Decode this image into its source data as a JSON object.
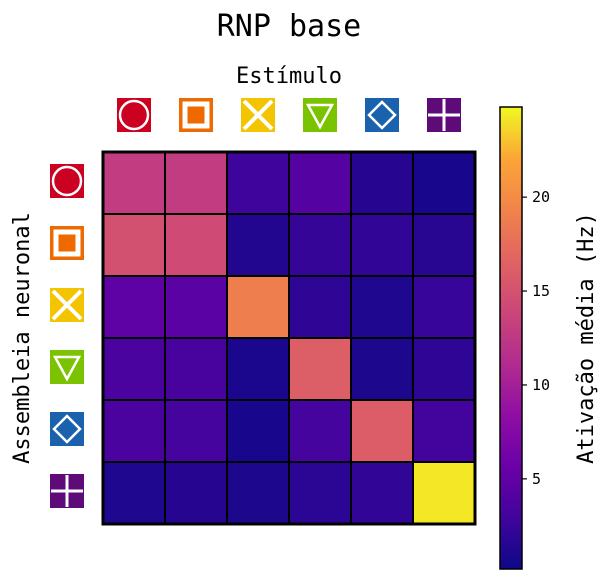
{
  "chart_data": {
    "type": "heatmap",
    "title": "RNP base",
    "xlabel": "Estímulo",
    "ylabel": "Assembleia neuronal",
    "colorbar_label": "Ativação média (Hz)",
    "colorbar_range": [
      0.2,
      24.8
    ],
    "colorbar_ticks": [
      "5",
      "10",
      "15",
      "20"
    ],
    "colormap": "plasma",
    "x_categories": [
      "circle-icon",
      "square-icon",
      "x-icon",
      "triangle-icon",
      "diamond-icon",
      "plus-icon"
    ],
    "y_categories": [
      "circle-icon",
      "square-icon",
      "x-icon",
      "triangle-icon",
      "diamond-icon",
      "plus-icon"
    ],
    "category_colors": [
      "#cc0020",
      "#ee6a00",
      "#f2c500",
      "#7bc200",
      "#1a62ae",
      "#5e0a78"
    ],
    "values": [
      [
        12.8,
        12.8,
        2.8,
        4.2,
        1.5,
        0.8
      ],
      [
        14.8,
        14.2,
        1.3,
        2.3,
        2.1,
        1.6
      ],
      [
        4.9,
        4.6,
        18.8,
        2.0,
        1.2,
        2.4
      ],
      [
        3.6,
        3.4,
        0.9,
        16.0,
        1.0,
        2.0
      ],
      [
        3.6,
        3.2,
        0.8,
        3.2,
        15.9,
        3.0
      ],
      [
        1.2,
        1.5,
        1.0,
        1.8,
        2.1,
        24.2
      ]
    ]
  }
}
